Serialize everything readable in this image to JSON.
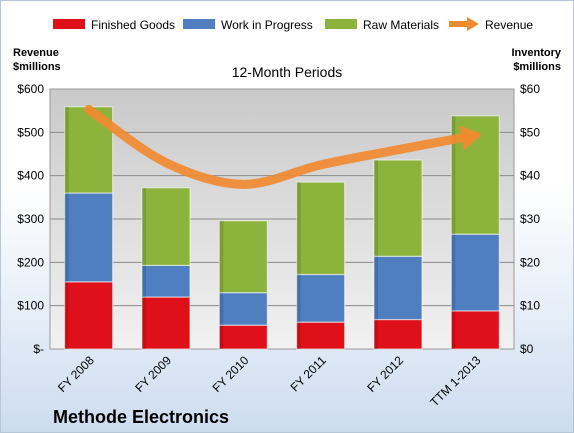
{
  "chart_data": {
    "type": "bar",
    "subtitle": "12-Month Periods",
    "company": "Methode Electronics",
    "categories": [
      "FY 2008",
      "FY 2009",
      "FY 2010",
      "FY 2011",
      "FY 2012",
      "TTM 1-2013"
    ],
    "left_axis": {
      "label_line1": "Revenue",
      "label_line2": "$millions",
      "range": [
        0,
        600
      ],
      "ticks": [
        "$-",
        "$100",
        "$200",
        "$300",
        "$400",
        "$500",
        "$600"
      ]
    },
    "right_axis": {
      "label_line1": "Inventory",
      "label_line2": "$millions",
      "range": [
        0,
        60
      ],
      "ticks": [
        "$0",
        "$10",
        "$20",
        "$30",
        "$40",
        "$50",
        "$60"
      ]
    },
    "stacked": true,
    "series": [
      {
        "name": "Finished Goods",
        "axis": "right",
        "color": "#e0101a",
        "values": [
          15.5,
          12.0,
          5.5,
          6.2,
          6.8,
          8.8
        ]
      },
      {
        "name": "Work in Progress",
        "axis": "right",
        "color": "#4f7fc0",
        "values": [
          20.5,
          7.3,
          7.5,
          11.0,
          14.6,
          17.7
        ]
      },
      {
        "name": "Raw Materials",
        "axis": "right",
        "color": "#8cb43c",
        "values": [
          19.9,
          17.9,
          16.6,
          21.3,
          22.2,
          27.3
        ]
      }
    ],
    "line_series": {
      "name": "Revenue",
      "axis": "left",
      "color": "#f08a30",
      "values": [
        553,
        430,
        380,
        425,
        460,
        493
      ]
    },
    "grid": true,
    "legend_position": "top"
  }
}
